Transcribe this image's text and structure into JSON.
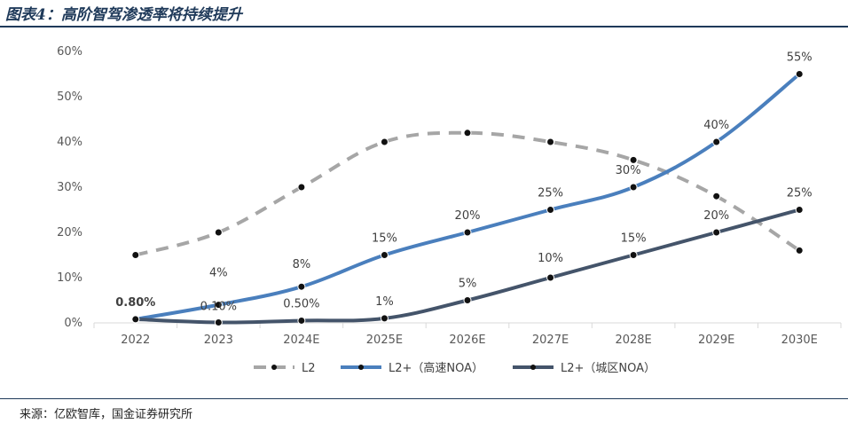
{
  "header": {
    "title": "图表4：高阶智驾渗透率将持续提升"
  },
  "footer": {
    "source": "来源：亿欧智库，国金证券研究所"
  },
  "colors": {
    "l2": "#a6a6a6",
    "highway": "#4a7fbd",
    "city": "#44546a",
    "axis": "#d9d9d9",
    "rule": "#1f3a5a"
  },
  "chart_data": {
    "type": "line",
    "categories": [
      "2022",
      "2023",
      "2024E",
      "2025E",
      "2026E",
      "2027E",
      "2028E",
      "2029E",
      "2030E"
    ],
    "ylim": [
      0,
      60
    ],
    "yticks": [
      "0%",
      "10%",
      "20%",
      "30%",
      "40%",
      "50%",
      "60%"
    ],
    "series": [
      {
        "name": "L2",
        "style": "dashed",
        "values": [
          15,
          20,
          30,
          40,
          42,
          40,
          36,
          28,
          16
        ],
        "labels": []
      },
      {
        "name": "L2+（高速NOA）",
        "style": "solid",
        "values": [
          0.8,
          4,
          8,
          15,
          20,
          25,
          30,
          40,
          55
        ],
        "labels": [
          "0.80%",
          "4%",
          "8%",
          "15%",
          "20%",
          "25%",
          "30%",
          "40%",
          "55%"
        ]
      },
      {
        "name": "L2+（城区NOA）",
        "style": "solid",
        "values": [
          0.8,
          0.1,
          0.5,
          1,
          5,
          10,
          15,
          20,
          25
        ],
        "labels": [
          "",
          "0.10%",
          "0.50%",
          "1%",
          "5%",
          "10%",
          "15%",
          "20%",
          "25%"
        ]
      }
    ],
    "legend": "bottom",
    "grid": false
  }
}
